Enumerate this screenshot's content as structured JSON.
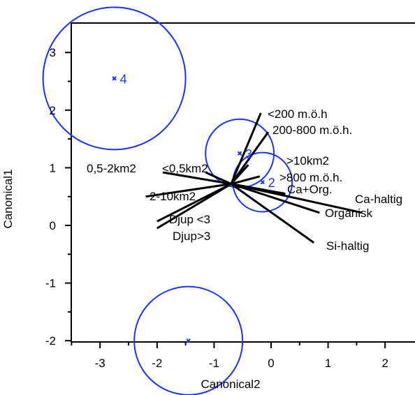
{
  "chart_data": {
    "type": "scatter",
    "title": "",
    "xlabel": "Canonical2",
    "ylabel": "Canonical1",
    "xlim": [
      -3.5,
      2.5
    ],
    "ylim": [
      -2.0,
      3.5
    ],
    "xticks": [
      -3,
      -2,
      -1,
      0,
      1,
      2
    ],
    "yticks": [
      -2,
      -1,
      0,
      1,
      2,
      3
    ],
    "xtick_labels": [
      "-3",
      "-2",
      "-1",
      "0",
      "1",
      "2"
    ],
    "ytick_labels": [
      "-2",
      "-1",
      "0",
      "1",
      "2",
      "3"
    ],
    "grid": false,
    "colors": {
      "groups": "#1a33ff",
      "rays": "#000000"
    },
    "groups": [
      {
        "label": "4",
        "x": -2.75,
        "y": 2.55,
        "radius": 1.25
      },
      {
        "label": "3",
        "x": -0.55,
        "y": 1.25,
        "radius": 0.6
      },
      {
        "label": "2",
        "x": -0.15,
        "y": 0.75,
        "radius": 0.52
      },
      {
        "label": "",
        "x": -1.45,
        "y": -2.0,
        "radius": 0.95
      }
    ],
    "biplot_origin": {
      "x": -0.7,
      "y": 0.72
    },
    "biplot_rays": [
      {
        "label": "<200 m.ö.h",
        "x": -0.18,
        "y": 1.95
      },
      {
        "label": "200-800 m.ö.h.",
        "x": -0.05,
        "y": 1.62
      },
      {
        "label": "0,5-2km2",
        "x": -1.9,
        "y": 0.92
      },
      {
        "label": "<0,5km2",
        "x": -1.15,
        "y": 0.92
      },
      {
        "label": ">10km2",
        "x": -0.4,
        "y": 1.05
      },
      {
        "label": ">800 m.ö.h.",
        "x": -0.2,
        "y": 0.85
      },
      {
        "label": "Ca+Org.",
        "x": 0.25,
        "y": 0.55
      },
      {
        "label": "Ca-haltig",
        "x": 1.6,
        "y": 0.22
      },
      {
        "label": "Organisk",
        "x": 0.85,
        "y": 0.22
      },
      {
        "label": "Si-haltig",
        "x": 0.75,
        "y": -0.3
      },
      {
        "label": "2-10km2",
        "x": -2.2,
        "y": 0.5
      },
      {
        "label": "Djup <3",
        "x": -2.0,
        "y": 0.07
      },
      {
        "label": "Djup>3",
        "x": -2.0,
        "y": -0.05
      }
    ]
  }
}
